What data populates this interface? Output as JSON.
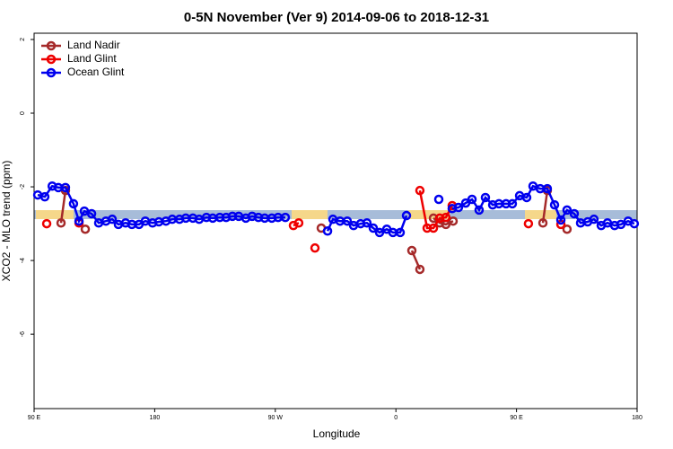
{
  "chart_data": {
    "type": "line",
    "title": "0-5N November (Ver 9)   2014-09-06 to 2018-12-31",
    "xlabel": "Longitude",
    "ylabel": "XCO2 - MLO trend (ppm)",
    "xlim": [
      90,
      540
    ],
    "ylim": [
      -8.02,
      2.17
    ],
    "xticks": [
      {
        "value": 90,
        "label": "90 E"
      },
      180,
      {
        "value": 270,
        "label": "90 W"
      },
      {
        "value": 360,
        "label": "0"
      },
      {
        "value": 450,
        "label": "90 E"
      },
      {
        "value": 540,
        "label": "180"
      }
    ],
    "yticks": [
      -6,
      -4,
      -2,
      0,
      2
    ],
    "legend": "top-left",
    "series": [
      {
        "name": "Land Nadir",
        "color": "#a52a2a",
        "x": [
          110.1,
          113.4,
          null,
          128.2,
          null,
          304.3,
          null,
          371.9,
          377.9,
          null,
          388.0,
          392.7,
          397.3,
          402.7,
          null,
          469.7,
          473.0,
          null,
          487.7
        ],
        "values": [
          -2.98,
          -2.1,
          null,
          -3.15,
          null,
          -3.12,
          null,
          -3.73,
          -4.24,
          null,
          -2.85,
          -2.98,
          -3.02,
          -2.93,
          null,
          -2.98,
          -2.1,
          null,
          -3.15
        ]
      },
      {
        "name": "Land Glint",
        "color": "#ee0000",
        "x": [
          99.4,
          null,
          123.5,
          null,
          283.5,
          287.5,
          null,
          299.6,
          null,
          377.9,
          383.3,
          388.0,
          392.7,
          397.3,
          402.0,
          null,
          458.9,
          null,
          483.1
        ],
        "values": [
          -3.0,
          null,
          -2.98,
          null,
          -3.05,
          -2.98,
          null,
          -3.66,
          null,
          -2.1,
          -3.12,
          -3.12,
          -2.85,
          -2.83,
          -2.51,
          null,
          -3.0,
          null,
          -3.02
        ]
      },
      {
        "name": "Ocean Glint",
        "color": "#0000ee",
        "x": [
          92.7,
          98.0,
          103.5,
          108.1,
          113.4,
          119.4,
          123.5,
          127.5,
          132.9,
          138.2,
          143.6,
          148.3,
          152.9,
          158.3,
          163.0,
          168.3,
          173.0,
          178.4,
          183.1,
          188.4,
          193.1,
          198.5,
          203.2,
          208.5,
          213.2,
          218.6,
          223.3,
          228.6,
          233.3,
          238.0,
          242.7,
          248.0,
          252.7,
          257.4,
          262.1,
          267.4,
          272.1,
          277.5,
          null,
          309.0,
          313.0,
          318.3,
          323.7,
          328.4,
          333.7,
          338.4,
          343.1,
          347.8,
          353.2,
          357.8,
          363.2,
          367.9,
          null,
          392.0,
          null,
          402.0,
          406.7,
          412.1,
          416.8,
          422.1,
          426.8,
          432.2,
          436.9,
          442.2,
          446.9,
          452.3,
          457.6,
          462.3,
          467.7,
          473.0,
          478.4,
          483.1,
          487.7,
          493.1,
          497.8,
          503.1,
          507.8,
          513.2,
          517.9,
          523.2,
          527.9,
          533.3,
          537.9
        ],
        "values": [
          -2.22,
          -2.27,
          -1.98,
          -2.02,
          -2.02,
          -2.46,
          -2.93,
          -2.66,
          -2.73,
          -2.98,
          -2.93,
          -2.88,
          -3.02,
          -2.98,
          -3.02,
          -3.02,
          -2.93,
          -2.98,
          -2.95,
          -2.93,
          -2.88,
          -2.88,
          -2.85,
          -2.85,
          -2.88,
          -2.83,
          -2.85,
          -2.83,
          -2.83,
          -2.8,
          -2.8,
          -2.85,
          -2.8,
          -2.83,
          -2.85,
          -2.85,
          -2.83,
          -2.83,
          null,
          -3.2,
          -2.88,
          -2.93,
          -2.93,
          -3.05,
          -3.0,
          -2.98,
          -3.12,
          -3.24,
          -3.15,
          -3.24,
          -3.24,
          -2.78,
          null,
          -2.34,
          null,
          -2.59,
          -2.56,
          -2.44,
          -2.34,
          -2.63,
          -2.29,
          -2.49,
          -2.46,
          -2.46,
          -2.46,
          -2.24,
          -2.29,
          -1.98,
          -2.05,
          -2.05,
          -2.49,
          -2.9,
          -2.63,
          -2.73,
          -2.98,
          -2.95,
          -2.88,
          -3.05,
          -2.98,
          -3.05,
          -3.02,
          -2.93,
          -3.0
        ]
      }
    ]
  }
}
